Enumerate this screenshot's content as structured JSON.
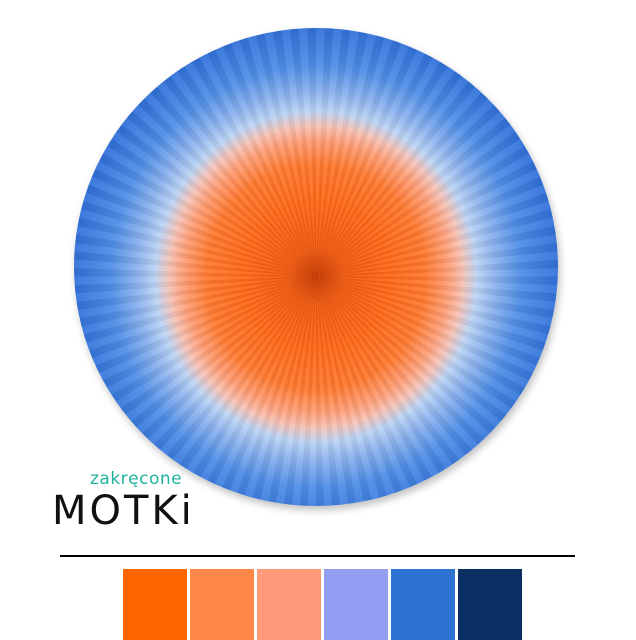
{
  "logo": {
    "small_text": "zakręcone",
    "big_text": "MOTKi",
    "accent_color": "#1fb3a0"
  },
  "image": {
    "subject": "yarn-cake",
    "colors": [
      "#0e2a6e",
      "#2f6fd8",
      "#bcd4f4",
      "#ffa07a",
      "#ff6a1a"
    ]
  },
  "swatches": [
    {
      "color": "#ff6600"
    },
    {
      "color": "#ff8849"
    },
    {
      "color": "#ff9b7a"
    },
    {
      "color": "#939ef2"
    },
    {
      "color": "#2c73d2"
    },
    {
      "color": "#0d3064"
    }
  ]
}
